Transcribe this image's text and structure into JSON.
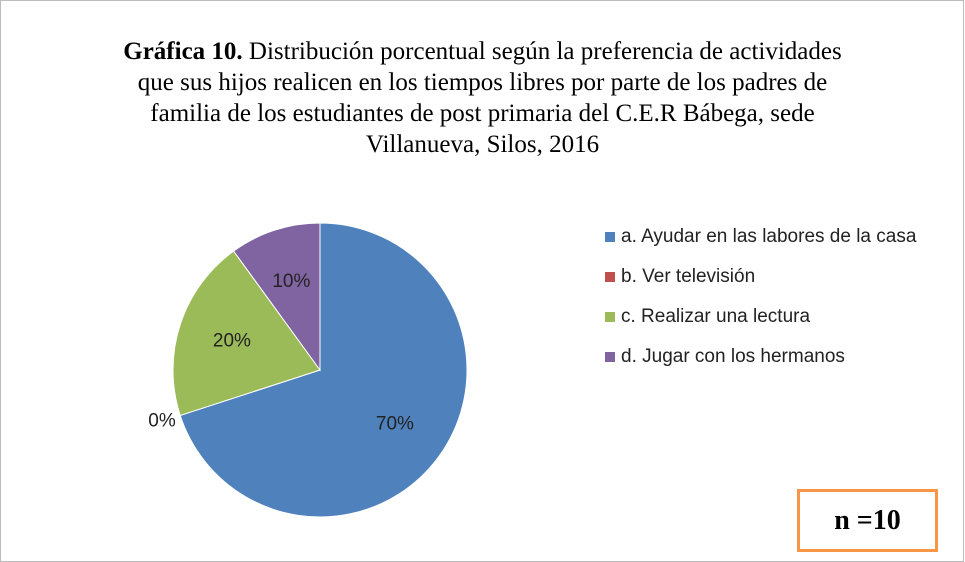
{
  "chart_data": {
    "type": "pie",
    "title_prefix": "Gráfica 10.",
    "title": "Distribución porcentual según la preferencia de actividades que sus hijos realicen en los tiempos libres por parte de los padres de familia de los estudiantes de post primaria del C.E.R Bábega, sede Villanueva, Silos, 2016",
    "categories": [
      "a. Ayudar en las labores de la casa",
      "b. Ver televisión",
      "c. Realizar una lectura",
      "d. Jugar con los hermanos"
    ],
    "values": [
      70,
      0,
      20,
      10
    ],
    "value_labels": [
      "70%",
      "0%",
      "20%",
      "10%"
    ],
    "colors": [
      "#4f81bd",
      "#c0504d",
      "#9bbb59",
      "#8064a2"
    ],
    "annotation": "n =10"
  }
}
